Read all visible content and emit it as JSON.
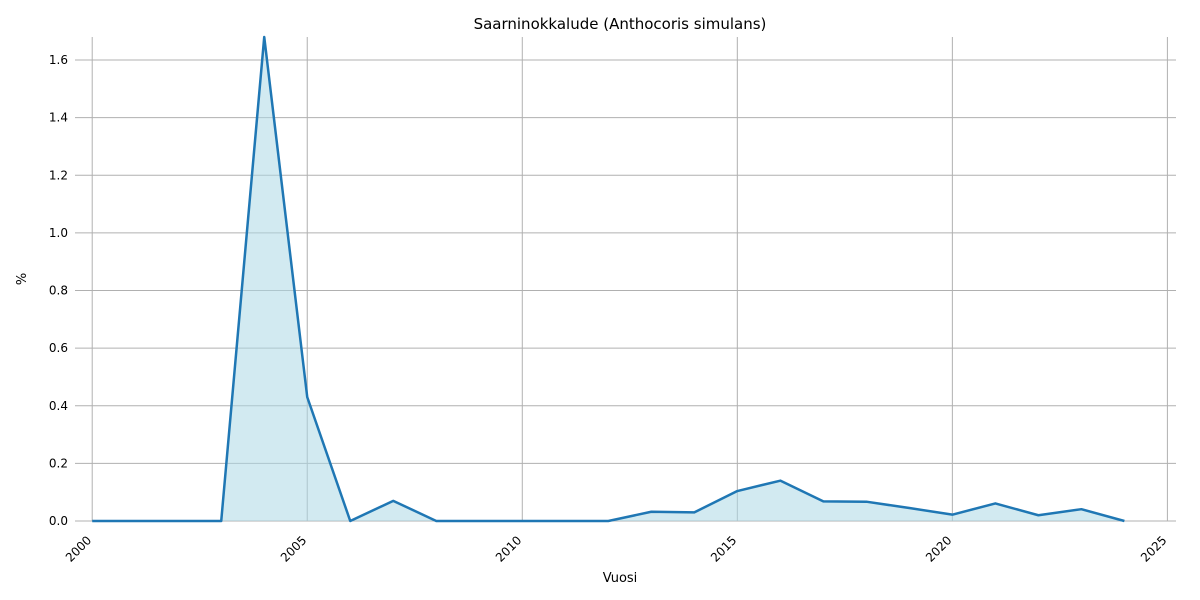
{
  "chart_data": {
    "type": "area",
    "title": "Saarninokkalude (Anthocoris simulans)",
    "xlabel": "Vuosi",
    "ylabel": "%",
    "xlim": [
      1999.6,
      2025.2
    ],
    "ylim": [
      0,
      1.68
    ],
    "x_ticks": [
      2000,
      2005,
      2010,
      2015,
      2020,
      2025
    ],
    "y_ticks": [
      0.0,
      0.2,
      0.4,
      0.6,
      0.8,
      1.0,
      1.2,
      1.4,
      1.6
    ],
    "x_tick_labels": [
      "2000",
      "2005",
      "2010",
      "2015",
      "2020",
      "2025"
    ],
    "y_tick_labels": [
      "0.0",
      "0.2",
      "0.4",
      "0.6",
      "0.8",
      "1.0",
      "1.2",
      "1.4",
      "1.6"
    ],
    "grid": true,
    "legend": "none",
    "series": [
      {
        "x": [
          2000,
          2001,
          2002,
          2003,
          2004,
          2005,
          2006,
          2007,
          2008,
          2009,
          2010,
          2011,
          2012,
          2013,
          2014,
          2015,
          2016,
          2017,
          2018,
          2019,
          2020,
          2021,
          2022,
          2023,
          2024
        ],
        "values": [
          0,
          0,
          0,
          0,
          1.68,
          0.43,
          0,
          0.07,
          0,
          0,
          0,
          0,
          0,
          0.032,
          0.03,
          0.104,
          0.14,
          0.068,
          0.067,
          0.045,
          0.022,
          0.061,
          0.02,
          0.041,
          0
        ],
        "line_color": "#1f77b4",
        "fill_color": "#add8e6"
      }
    ]
  }
}
